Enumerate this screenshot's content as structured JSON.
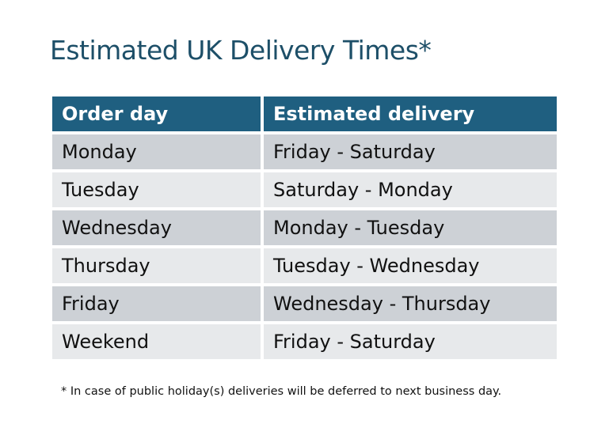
{
  "title": "Estimated UK Delivery Times*",
  "table": {
    "headers": [
      "Order day",
      "Estimated delivery"
    ],
    "rows": [
      [
        "Monday",
        "Friday - Saturday"
      ],
      [
        "Tuesday",
        "Saturday - Monday"
      ],
      [
        "Wednesday",
        "Monday - Tuesday"
      ],
      [
        "Thursday",
        "Tuesday - Wednesday"
      ],
      [
        "Friday",
        "Wednesday - Thursday"
      ],
      [
        "Weekend",
        "Friday - Saturday"
      ]
    ]
  },
  "footnote": "* In case of public holiday(s) deliveries will be deferred to next business day.",
  "colors": {
    "header": "#1f5f80",
    "row_odd": "#cdd1d6",
    "row_even": "#e7e9eb",
    "title": "#1d4f68"
  }
}
